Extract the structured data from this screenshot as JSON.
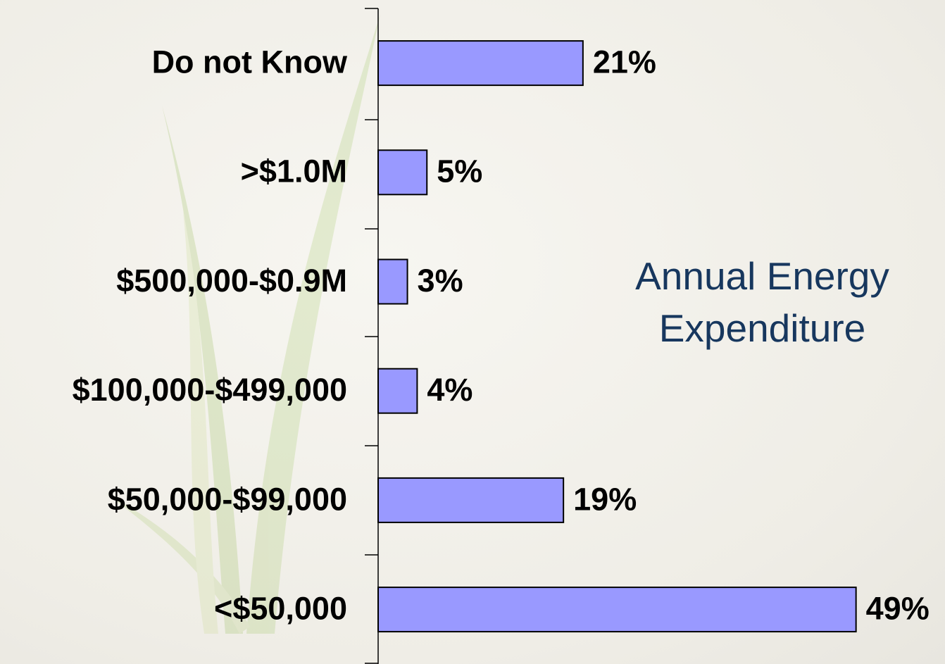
{
  "chart_data": {
    "type": "barh",
    "title": "Annual Energy Expenditure",
    "categories": [
      "Do not Know",
      ">$1.0M",
      "$500,000-$0.9M",
      "$100,000-$499,000",
      "$50,000-$99,000",
      "<$50,000"
    ],
    "values": [
      21,
      5,
      3,
      4,
      19,
      49
    ],
    "value_labels": [
      "21%",
      "5%",
      "3%",
      "4%",
      "19%",
      "49%"
    ],
    "color": "#9999ff"
  }
}
